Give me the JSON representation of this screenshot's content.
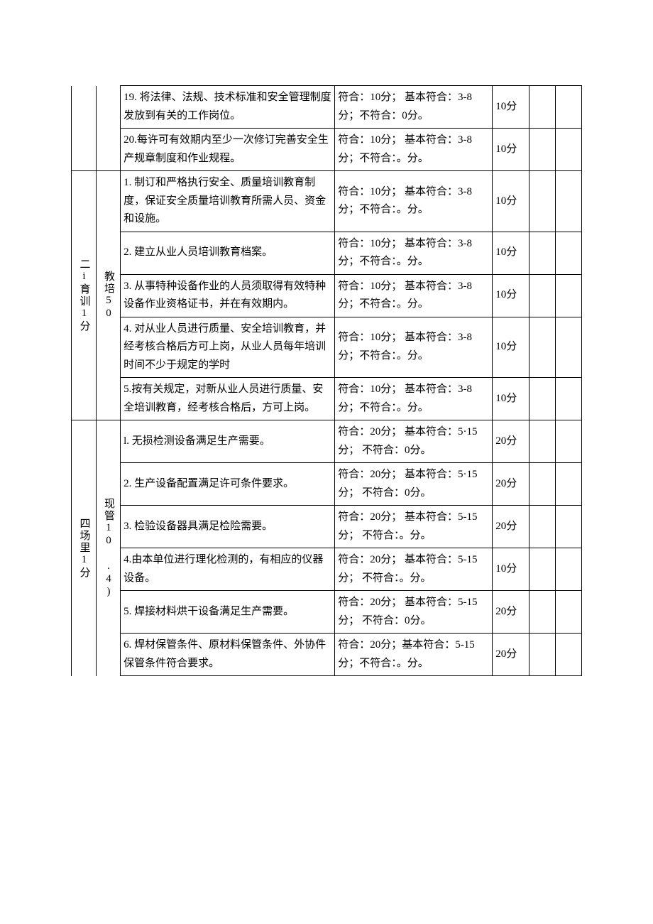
{
  "sections": [
    {
      "catLabel": "",
      "subLabel": "",
      "rows": [
        {
          "item": "19. 将法律、法规、技术标准和安全管理制度发放到有关的工作岗位。",
          "criteria": "符合：10分；\n基本符合：3-8分；不符合：0分。",
          "score": "10分"
        },
        {
          "item": "20.每许可有效期内至少一次修订完善安全生产规章制度和作业规程。",
          "criteria": "符合：10分；\n基本符合：3-8分；不符合：。分。",
          "score": "10分"
        }
      ]
    },
    {
      "catLabel": "二i育训1分",
      "subLabel": "教培50",
      "rows": [
        {
          "item": "1. 制订和严格执行安全、质量培训教育制度，保证安全质量培训教育所需人员、资金和设施。",
          "criteria": "符合：10分；\n基本符合：3-8分；不符合：。分。",
          "score": "10分"
        },
        {
          "item": "2. 建立从业人员培训教育档案。",
          "criteria": "符合：10分；\n基本符合：3-8分；不符合：。分。",
          "score": "10分"
        },
        {
          "item": "3. 从事特种设备作业的人员须取得有效特种设备作业资格证书，并在有效期内。",
          "criteria": "符合：10分；\n基本符合：3-8分；不符合：。分。",
          "score": "10分"
        },
        {
          "item": "4. 对从业人员进行质量、安全培训教育，并经考核合格后方可上岗，从业人员每年培训时间不少于规定的学时",
          "criteria": "符合：10分；\n基本符合：3-8分；不符合：。分。",
          "score": "10分"
        },
        {
          "item": "5.按有关规定，对新从业人员进行质量、安全培训教育，经考核合格后，方可上岗。",
          "criteria": "符合：10分；\n基本符合：3-8分；不符合：。分。",
          "score": "10分"
        }
      ]
    },
    {
      "catLabel": "四场里1分",
      "subLabel": "现管10 .4)",
      "rows": [
        {
          "item": "l. 无损检测设备满足生产需要。",
          "criteria": "符合：20分；\n基本符合：5·15分；\n不符合：0分。",
          "score": "20分"
        },
        {
          "item": "2. 生产设备配置满足许可条件要求。",
          "criteria": "符合：20分；\n基本符合：5·15分；\n不符合：0分。",
          "score": "20分"
        },
        {
          "item": "3. 检验设备器具满足检险需要。",
          "criteria": "符合：20分；\n基本符合：5-15分；\n不符合：。分。",
          "score": "20分"
        },
        {
          "item": "4.由本单位进行理化检测的，有相应的仪器设备。",
          "criteria": "符合：20分；\n基本符合：5-15分；\n不符合：。分。",
          "score": "10分"
        },
        {
          "item": "5. 焊接材料烘干设备满足生产需要。",
          "criteria": "符合：20分；\n基本符合：5-15分；\n不符合：0分。",
          "score": "20分"
        },
        {
          "item": "6. 焊材保管条件、原材料保管条件、外协件保管条件符合要求。",
          "criteria": "符合：20分；基本符合：5-15分；不符合：。分。",
          "score": "20分"
        }
      ]
    }
  ]
}
